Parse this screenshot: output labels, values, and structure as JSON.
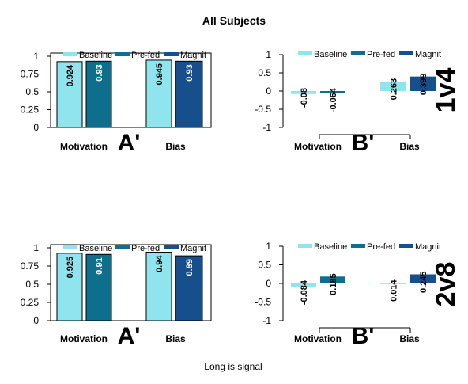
{
  "figure": {
    "title": "All Subjects",
    "footer": "Long is signal",
    "legend_items": [
      "Baseline",
      "Pre-fed",
      "Magnit"
    ],
    "colors": {
      "Baseline": "#90e4ee",
      "Pre-fed": "#0e6f8c",
      "Magnit": "#164f8c"
    }
  },
  "chart_data": [
    {
      "type": "bar",
      "row_label": "",
      "panel_label": "A'",
      "categories": [
        "Motivation",
        "Bias"
      ],
      "series": [
        {
          "name": "Baseline",
          "values": [
            0.924,
            0.945
          ]
        },
        {
          "name": "Pre-fed",
          "values": [
            0.93,
            null
          ]
        },
        {
          "name": "Magnit",
          "values": [
            null,
            0.93
          ]
        }
      ],
      "data_labels": [
        {
          "category": "Motivation",
          "series": "Baseline",
          "text": "0.924"
        },
        {
          "category": "Motivation",
          "series": "Pre-fed",
          "text": "0.93"
        },
        {
          "category": "Bias",
          "series": "Baseline",
          "text": "0.945"
        },
        {
          "category": "Bias",
          "series": "Magnit",
          "text": "0.93"
        }
      ],
      "ylim": [
        0,
        1
      ],
      "yticks": [
        0,
        0.25,
        0.5,
        0.75,
        1
      ],
      "ytick_labels": [
        "0",
        "0.25",
        "0.5",
        "0.75",
        "1"
      ],
      "axis_frame": "full",
      "legend": "top",
      "grid": false
    },
    {
      "type": "bar",
      "row_label": "1v4",
      "panel_label": "B'",
      "categories": [
        "Motivation",
        "Bias"
      ],
      "series": [
        {
          "name": "Baseline",
          "values": [
            -0.08,
            0.263
          ]
        },
        {
          "name": "Pre-fed",
          "values": [
            -0.064,
            null
          ]
        },
        {
          "name": "Magnit",
          "values": [
            null,
            0.399
          ]
        }
      ],
      "data_labels": [
        {
          "category": "Motivation",
          "series": "Baseline",
          "text": "-0.08"
        },
        {
          "category": "Motivation",
          "series": "Pre-fed",
          "text": "-0.064"
        },
        {
          "category": "Bias",
          "series": "Baseline",
          "text": "0.263"
        },
        {
          "category": "Bias",
          "series": "Magnit",
          "text": "0.399"
        }
      ],
      "ylim": [
        -1,
        1
      ],
      "yticks": [
        -1,
        -0.5,
        0,
        0.5,
        1
      ],
      "ytick_labels": [
        "-1",
        "-0.5",
        "0",
        "0.5",
        "1"
      ],
      "axis_frame": "axes",
      "legend": "top",
      "grid": false
    },
    {
      "type": "bar",
      "row_label": "",
      "panel_label": "A'",
      "categories": [
        "Motivation",
        "Bias"
      ],
      "series": [
        {
          "name": "Baseline",
          "values": [
            0.925,
            0.94
          ]
        },
        {
          "name": "Pre-fed",
          "values": [
            0.91,
            null
          ]
        },
        {
          "name": "Magnit",
          "values": [
            null,
            0.89
          ]
        }
      ],
      "data_labels": [
        {
          "category": "Motivation",
          "series": "Baseline",
          "text": "0.925"
        },
        {
          "category": "Motivation",
          "series": "Pre-fed",
          "text": "0.91"
        },
        {
          "category": "Bias",
          "series": "Baseline",
          "text": "0.94"
        },
        {
          "category": "Bias",
          "series": "Magnit",
          "text": "0.89"
        }
      ],
      "ylim": [
        0,
        1
      ],
      "yticks": [
        0,
        0.25,
        0.5,
        0.75,
        1
      ],
      "ytick_labels": [
        "0",
        "0.25",
        "0.5",
        "0.75",
        "1"
      ],
      "axis_frame": "full",
      "legend": "top",
      "grid": false
    },
    {
      "type": "bar",
      "row_label": "2v8",
      "panel_label": "B'",
      "categories": [
        "Motivation",
        "Bias"
      ],
      "series": [
        {
          "name": "Baseline",
          "values": [
            -0.084,
            0.014
          ]
        },
        {
          "name": "Pre-fed",
          "values": [
            0.185,
            null
          ]
        },
        {
          "name": "Magnit",
          "values": [
            null,
            0.245
          ]
        }
      ],
      "data_labels": [
        {
          "category": "Motivation",
          "series": "Baseline",
          "text": "-0.084"
        },
        {
          "category": "Motivation",
          "series": "Pre-fed",
          "text": "0.185"
        },
        {
          "category": "Bias",
          "series": "Baseline",
          "text": "0.014"
        },
        {
          "category": "Bias",
          "series": "Magnit",
          "text": "0.245"
        }
      ],
      "ylim": [
        -1,
        1
      ],
      "yticks": [
        -1,
        -0.5,
        0,
        0.5,
        1
      ],
      "ytick_labels": [
        "-1",
        "-0.5",
        "0",
        "0.5",
        "1"
      ],
      "axis_frame": "axes",
      "legend": "top",
      "grid": false
    }
  ]
}
